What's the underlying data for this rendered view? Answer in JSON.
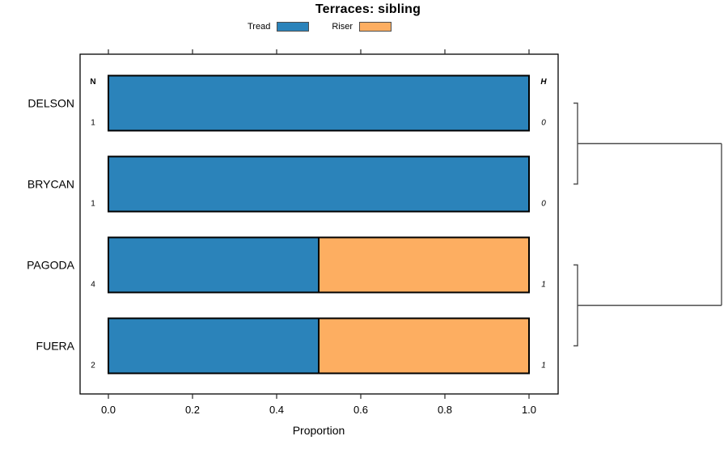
{
  "title": "Terraces: sibling",
  "legend": {
    "items": [
      {
        "label": "Tread",
        "color": "#2B83BA"
      },
      {
        "label": "Riser",
        "color": "#FDAE61"
      }
    ]
  },
  "chart_data": {
    "type": "bar",
    "orientation": "horizontal",
    "stacked": true,
    "title": "Terraces: sibling",
    "xlabel": "Proportion",
    "ylabel": "",
    "xlim": [
      0.0,
      1.0
    ],
    "xticks": [
      0.0,
      0.2,
      0.4,
      0.6,
      0.8,
      1.0
    ],
    "xtick_labels": [
      "0.0",
      "0.2",
      "0.4",
      "0.6",
      "0.8",
      "1.0"
    ],
    "grid": false,
    "legend_position": "top",
    "categories": [
      "DELSON",
      "BRYCAN",
      "PAGODA",
      "FUERA"
    ],
    "series": [
      {
        "name": "Tread",
        "color": "#2B83BA",
        "values": [
          1.0,
          1.0,
          0.5,
          0.5
        ]
      },
      {
        "name": "Riser",
        "color": "#FDAE61",
        "values": [
          0.0,
          0.0,
          0.5,
          0.5
        ]
      }
    ],
    "n_column": {
      "header": "N",
      "values": [
        "1",
        "1",
        "4",
        "2"
      ]
    },
    "h_column": {
      "header": "H",
      "values": [
        "0",
        "0",
        "1",
        "1"
      ]
    },
    "dendrogram": {
      "merges": [
        {
          "leaves": [
            0,
            1
          ]
        },
        {
          "leaves": [
            2,
            3
          ]
        }
      ],
      "root": "joins both merges"
    }
  }
}
